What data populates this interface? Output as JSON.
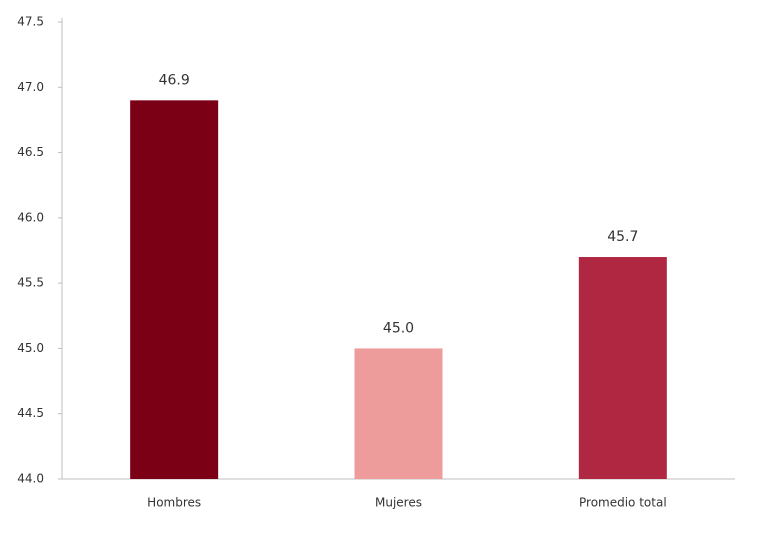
{
  "chart_data": {
    "type": "bar",
    "categories": [
      "Hombres",
      "Mujeres",
      "Promedio total"
    ],
    "values": [
      46.9,
      45.0,
      45.7
    ],
    "value_labels": [
      "46.9",
      "45.0",
      "45.7"
    ],
    "colors": [
      "#7b0016",
      "#ee9b9b",
      "#b02742"
    ],
    "ylim": [
      44.0,
      47.5
    ],
    "yticks": [
      {
        "value": 44.0,
        "label": "44.0"
      },
      44.5,
      {
        "value": 45.0,
        "label": "45.0"
      },
      45.5,
      {
        "value": 46.0,
        "label": "46.0"
      },
      46.5,
      {
        "value": 47.0,
        "label": "47.0"
      },
      47.5
    ],
    "grid": false
  }
}
